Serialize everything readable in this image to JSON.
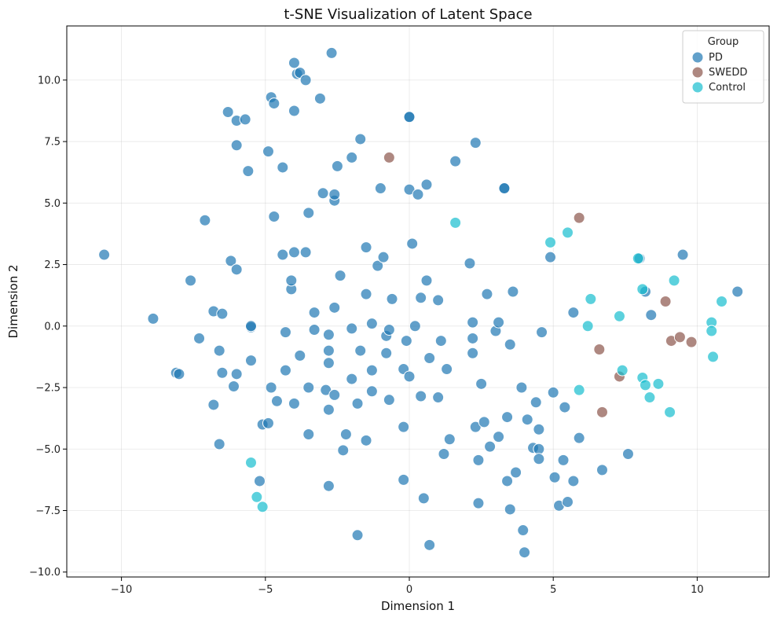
{
  "chart_data": {
    "type": "scatter",
    "title": "t-SNE Visualization of Latent Space",
    "xlabel": "Dimension 1",
    "ylabel": "Dimension 2",
    "xlim": [
      -11.9,
      12.5
    ],
    "ylim": [
      -10.2,
      12.2
    ],
    "xticks": [
      -10,
      -5,
      0,
      5,
      10
    ],
    "xtick_labels": [
      "−10",
      "−5",
      "0",
      "5",
      "10"
    ],
    "yticks": [
      -10,
      -7.5,
      -5,
      -2.5,
      0,
      2.5,
      5,
      7.5,
      10
    ],
    "ytick_labels": [
      "−10.0",
      "−7.5",
      "−5.0",
      "−2.5",
      "0.0",
      "2.5",
      "5.0",
      "7.5",
      "10.0"
    ],
    "grid": true,
    "legend": {
      "title": "Group",
      "placement": "top-right"
    },
    "series": [
      {
        "name": "PD",
        "color": "#1f77b4",
        "points": [
          [
            -10.6,
            2.9
          ],
          [
            -8.9,
            0.3
          ],
          [
            -8.1,
            -1.9
          ],
          [
            -8.0,
            -1.95
          ],
          [
            -7.6,
            1.85
          ],
          [
            -7.3,
            -0.5
          ],
          [
            -7.1,
            4.3
          ],
          [
            -6.8,
            0.6
          ],
          [
            -6.8,
            -3.2
          ],
          [
            -6.6,
            -4.8
          ],
          [
            -6.6,
            -1.0
          ],
          [
            -6.5,
            -1.9
          ],
          [
            -6.5,
            0.5
          ],
          [
            -6.3,
            8.7
          ],
          [
            -6.2,
            2.65
          ],
          [
            -6.1,
            -2.45
          ],
          [
            -6.0,
            7.35
          ],
          [
            -6.0,
            8.35
          ],
          [
            -6.0,
            2.3
          ],
          [
            -6.0,
            -1.95
          ],
          [
            -5.7,
            8.4
          ],
          [
            -5.6,
            6.3
          ],
          [
            -5.5,
            -1.4
          ],
          [
            -5.5,
            -0.05
          ],
          [
            -5.5,
            0.0
          ],
          [
            -5.2,
            -6.3
          ],
          [
            -5.1,
            -4.0
          ],
          [
            -4.9,
            7.1
          ],
          [
            -4.9,
            -3.95
          ],
          [
            -4.8,
            9.3
          ],
          [
            -4.8,
            -2.5
          ],
          [
            -4.7,
            9.05
          ],
          [
            -4.7,
            4.45
          ],
          [
            -4.6,
            -3.05
          ],
          [
            -4.4,
            6.45
          ],
          [
            -4.4,
            2.9
          ],
          [
            -4.3,
            -1.8
          ],
          [
            -4.3,
            -0.25
          ],
          [
            -4.1,
            1.5
          ],
          [
            -4.1,
            1.85
          ],
          [
            -4.0,
            10.7
          ],
          [
            -4.0,
            3.0
          ],
          [
            -4.0,
            8.75
          ],
          [
            -4.0,
            -3.15
          ],
          [
            -3.9,
            10.25
          ],
          [
            -3.8,
            10.3
          ],
          [
            -3.8,
            -1.2
          ],
          [
            -3.6,
            10.0
          ],
          [
            -3.6,
            3.0
          ],
          [
            -3.5,
            -2.5
          ],
          [
            -3.5,
            4.6
          ],
          [
            -3.5,
            -4.4
          ],
          [
            -3.3,
            0.55
          ],
          [
            -3.3,
            -0.15
          ],
          [
            -3.1,
            9.25
          ],
          [
            -3.0,
            5.4
          ],
          [
            -2.9,
            -2.6
          ],
          [
            -2.8,
            -1.0
          ],
          [
            -2.8,
            -0.35
          ],
          [
            -2.8,
            -1.5
          ],
          [
            -2.8,
            -3.4
          ],
          [
            -2.8,
            -6.5
          ],
          [
            -2.7,
            11.1
          ],
          [
            -2.6,
            5.1
          ],
          [
            -2.6,
            5.35
          ],
          [
            -2.6,
            -2.8
          ],
          [
            -2.6,
            0.75
          ],
          [
            -2.5,
            6.5
          ],
          [
            -2.4,
            2.05
          ],
          [
            -2.3,
            -5.05
          ],
          [
            -2.2,
            -4.4
          ],
          [
            -2.0,
            6.85
          ],
          [
            -2.0,
            -0.1
          ],
          [
            -2.0,
            -2.15
          ],
          [
            -1.8,
            -3.15
          ],
          [
            -1.8,
            -8.5
          ],
          [
            -1.7,
            7.6
          ],
          [
            -1.7,
            -1.0
          ],
          [
            -1.5,
            1.3
          ],
          [
            -1.5,
            -4.65
          ],
          [
            -1.5,
            3.2
          ],
          [
            -1.3,
            0.1
          ],
          [
            -1.3,
            -1.8
          ],
          [
            -1.3,
            -2.65
          ],
          [
            -1.1,
            2.45
          ],
          [
            -1.0,
            5.6
          ],
          [
            -0.9,
            2.8
          ],
          [
            -0.8,
            -0.4
          ],
          [
            -0.8,
            -1.1
          ],
          [
            -0.7,
            -0.15
          ],
          [
            -0.7,
            -3.0
          ],
          [
            -0.6,
            1.1
          ],
          [
            -0.2,
            -1.75
          ],
          [
            -0.2,
            -4.1
          ],
          [
            -0.2,
            -6.25
          ],
          [
            -0.1,
            -0.6
          ],
          [
            0.0,
            8.5
          ],
          [
            0.0,
            8.5
          ],
          [
            0.0,
            5.55
          ],
          [
            0.0,
            -2.05
          ],
          [
            0.1,
            3.35
          ],
          [
            0.2,
            0.0
          ],
          [
            0.3,
            5.35
          ],
          [
            0.4,
            -2.85
          ],
          [
            0.4,
            1.15
          ],
          [
            0.5,
            -7.0
          ],
          [
            0.6,
            1.85
          ],
          [
            0.6,
            5.75
          ],
          [
            0.7,
            -1.3
          ],
          [
            0.7,
            -8.9
          ],
          [
            1.0,
            -2.9
          ],
          [
            1.0,
            1.05
          ],
          [
            1.1,
            -0.6
          ],
          [
            1.2,
            -5.2
          ],
          [
            1.3,
            -1.75
          ],
          [
            1.4,
            -4.6
          ],
          [
            1.6,
            6.7
          ],
          [
            2.1,
            2.55
          ],
          [
            2.2,
            0.15
          ],
          [
            2.2,
            -0.5
          ],
          [
            2.2,
            -1.1
          ],
          [
            2.3,
            7.45
          ],
          [
            2.3,
            -4.1
          ],
          [
            2.4,
            -7.2
          ],
          [
            2.4,
            -5.45
          ],
          [
            2.5,
            -2.35
          ],
          [
            2.6,
            -3.9
          ],
          [
            2.7,
            1.3
          ],
          [
            2.8,
            -4.9
          ],
          [
            3.0,
            -0.2
          ],
          [
            3.1,
            0.15
          ],
          [
            3.1,
            -4.5
          ],
          [
            3.3,
            5.6
          ],
          [
            3.3,
            5.6
          ],
          [
            3.4,
            -3.7
          ],
          [
            3.4,
            -6.3
          ],
          [
            3.5,
            -7.45
          ],
          [
            3.5,
            -0.75
          ],
          [
            3.6,
            1.4
          ],
          [
            3.7,
            -5.95
          ],
          [
            3.9,
            -2.5
          ],
          [
            3.95,
            -8.3
          ],
          [
            4.0,
            -9.2
          ],
          [
            4.1,
            -3.8
          ],
          [
            4.3,
            -4.95
          ],
          [
            4.4,
            -3.1
          ],
          [
            4.5,
            -5.0
          ],
          [
            4.5,
            -4.2
          ],
          [
            4.5,
            -5.4
          ],
          [
            4.6,
            -0.25
          ],
          [
            4.9,
            2.8
          ],
          [
            5.0,
            -2.7
          ],
          [
            5.05,
            -6.15
          ],
          [
            5.2,
            -7.3
          ],
          [
            5.35,
            -5.45
          ],
          [
            5.4,
            -3.3
          ],
          [
            5.5,
            -7.15
          ],
          [
            5.7,
            0.55
          ],
          [
            5.7,
            -6.3
          ],
          [
            5.9,
            -4.55
          ],
          [
            6.7,
            -5.85
          ],
          [
            7.6,
            -5.2
          ],
          [
            8.0,
            2.75
          ],
          [
            8.2,
            1.4
          ],
          [
            8.4,
            0.45
          ],
          [
            9.5,
            2.9
          ],
          [
            11.4,
            1.4
          ]
        ]
      },
      {
        "name": "SWEDD",
        "color": "#8c564b",
        "points": [
          [
            -0.7,
            6.85
          ],
          [
            5.9,
            4.4
          ],
          [
            6.6,
            -0.95
          ],
          [
            6.7,
            -3.5
          ],
          [
            7.3,
            -2.05
          ],
          [
            8.9,
            1.0
          ],
          [
            9.1,
            -0.6
          ],
          [
            9.4,
            -0.45
          ],
          [
            9.8,
            -0.65
          ]
        ]
      },
      {
        "name": "Control",
        "color": "#17becf",
        "points": [
          [
            -5.5,
            -5.55
          ],
          [
            -5.3,
            -6.95
          ],
          [
            -5.1,
            -7.35
          ],
          [
            1.6,
            4.2
          ],
          [
            4.9,
            3.4
          ],
          [
            5.5,
            3.8
          ],
          [
            5.9,
            -2.6
          ],
          [
            6.2,
            0.0
          ],
          [
            6.3,
            1.1
          ],
          [
            7.3,
            0.4
          ],
          [
            7.4,
            -1.8
          ],
          [
            7.95,
            2.75
          ],
          [
            8.1,
            1.5
          ],
          [
            8.1,
            -2.1
          ],
          [
            8.2,
            -2.4
          ],
          [
            8.35,
            -2.9
          ],
          [
            8.65,
            -2.35
          ],
          [
            9.05,
            -3.5
          ],
          [
            9.2,
            1.85
          ],
          [
            10.5,
            0.15
          ],
          [
            10.5,
            -0.2
          ],
          [
            10.55,
            -1.25
          ],
          [
            10.85,
            1.0
          ]
        ]
      }
    ]
  }
}
